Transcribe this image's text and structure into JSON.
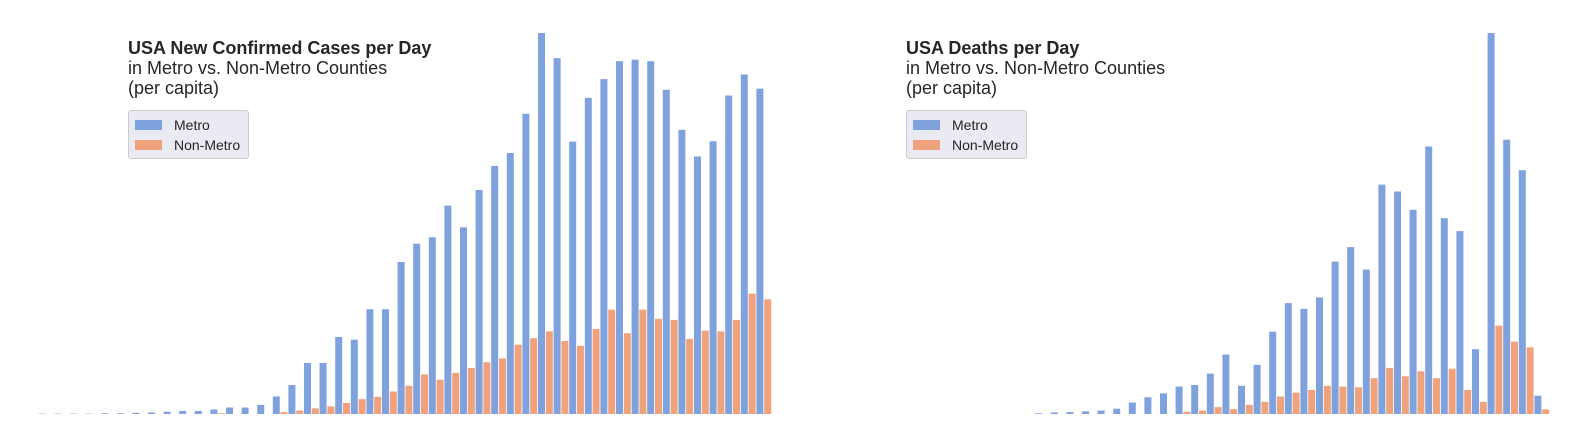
{
  "colors": {
    "metro": "#7fa1dd",
    "non_metro": "#f0a27c",
    "background": "#ffffff"
  },
  "chart_data": [
    {
      "type": "bar",
      "title": "USA New Confirmed Cases per Day",
      "subtitle": "in Metro vs. Non-Metro Counties",
      "subtitle2": "(per capita)",
      "legend_placement": "top-left",
      "grid": false,
      "ylim": [
        0,
        100
      ],
      "series": [
        {
          "name": "Metro",
          "values": [
            0.1,
            0.1,
            0.1,
            0.1,
            0.2,
            0.2,
            0.3,
            0.4,
            0.6,
            0.8,
            0.8,
            1.2,
            1.7,
            1.7,
            2.4,
            4.6,
            7.6,
            13.4,
            13.4,
            20.2,
            19.5,
            27.5,
            27.5,
            39.9,
            44.7,
            46.4,
            54.7,
            49.0,
            58.8,
            65.1,
            68.5,
            78.8,
            100,
            93.4,
            71.5,
            83.0,
            87.9,
            92.6,
            93.0,
            92.6,
            85.1,
            74.6,
            67.6,
            71.6,
            83.6,
            89.1,
            85.4
          ]
        },
        {
          "name": "Non-Metro",
          "values": [
            0,
            0,
            0,
            0,
            0,
            0,
            0,
            0,
            0,
            0.2,
            0,
            0,
            0,
            0.5,
            0.9,
            1.5,
            2.0,
            2.9,
            3.9,
            4.5,
            5.9,
            7.4,
            10.4,
            9.0,
            10.8,
            12.1,
            13.6,
            14.6,
            18.2,
            19.9,
            21.7,
            19.2,
            17.9,
            22.3,
            27.4,
            21.2,
            27.4,
            25.0,
            24.7,
            19.7,
            21.9,
            21.7,
            24.7,
            31.6,
            30.1
          ]
        }
      ]
    },
    {
      "type": "bar",
      "title": "USA Deaths per Day",
      "subtitle": "in Metro vs. Non-Metro Counties",
      "subtitle2": "(per capita)",
      "legend_placement": "top-left",
      "grid": false,
      "ylim": [
        0,
        100
      ],
      "series": [
        {
          "name": "Metro",
          "values": [
            0,
            0,
            0,
            0,
            0,
            0,
            0,
            0,
            0.2,
            0.4,
            0.5,
            0.7,
            0.9,
            1.4,
            3.0,
            4.4,
            5.4,
            7.2,
            7.6,
            10.6,
            15.6,
            7.4,
            12.9,
            21.6,
            29.1,
            27.6,
            30.6,
            40.0,
            43.8,
            37.9,
            60.2,
            58.4,
            53.6,
            70.2,
            51.4,
            48.0,
            17.0,
            100,
            72.0,
            64.0,
            4.8
          ]
        },
        {
          "name": "Non-Metro",
          "values": [
            0,
            0,
            0,
            0,
            0,
            0,
            0,
            0.6,
            0.9,
            1.8,
            1.3,
            2.4,
            3.2,
            4.6,
            5.6,
            6.3,
            7.4,
            7.2,
            7.0,
            9.4,
            12.1,
            9.9,
            11.2,
            9.4,
            11.9,
            6.3,
            3.2,
            23.2,
            19.0,
            17.5,
            1.2
          ]
        }
      ]
    }
  ]
}
